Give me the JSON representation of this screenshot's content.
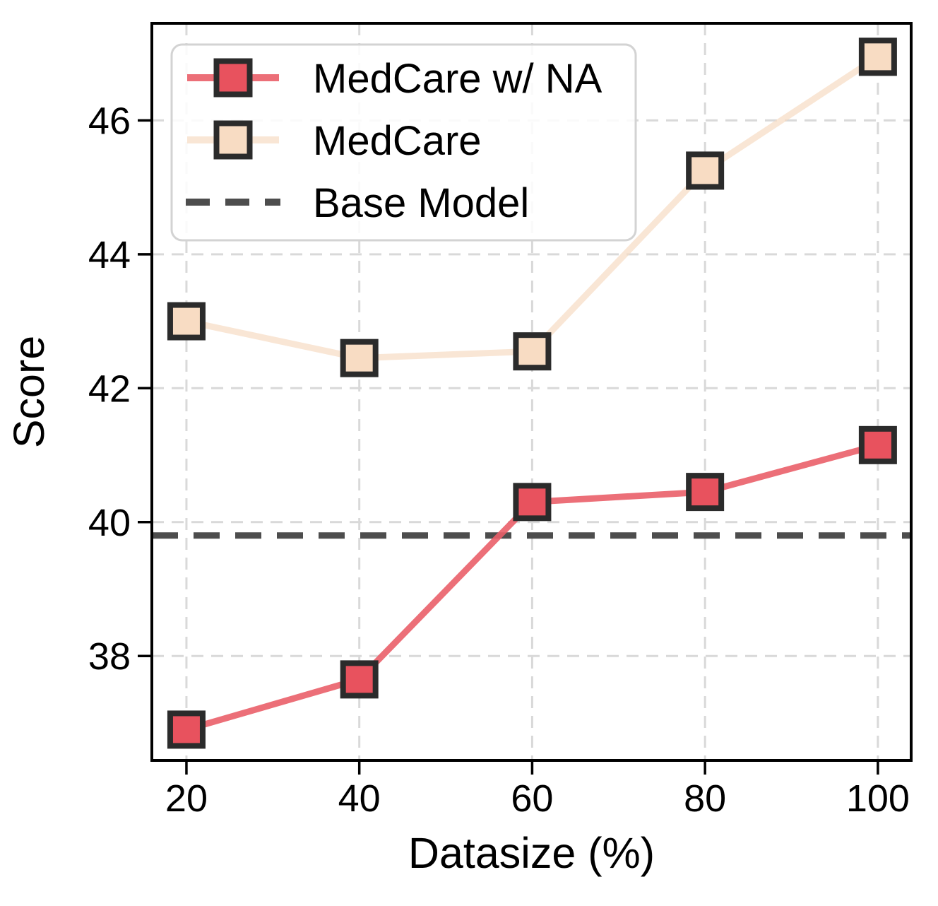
{
  "chart_data": {
    "type": "line",
    "title": "",
    "xlabel": "Datasize (%)",
    "ylabel": "Score",
    "x": [
      20,
      40,
      60,
      80,
      100
    ],
    "xticks": [
      "20",
      "40",
      "60",
      "80",
      "100"
    ],
    "xtick_values": [
      20,
      40,
      60,
      80,
      100
    ],
    "yticks": [
      "38",
      "40",
      "42",
      "44",
      "46"
    ],
    "ytick_values": [
      38,
      40,
      42,
      44,
      46
    ],
    "xlim": [
      16,
      103.85
    ],
    "ylim": [
      36.44,
      47.45
    ],
    "grid": true,
    "series": [
      {
        "name": "MedCare w/ NA",
        "values": [
          36.9,
          37.65,
          40.3,
          40.45,
          41.15
        ],
        "marker": "square",
        "color": "#e8525e",
        "line_color": "rgba(234,95,105,0.9)"
      },
      {
        "name": "MedCare",
        "values": [
          43.0,
          42.45,
          42.55,
          45.25,
          46.95
        ],
        "marker": "square",
        "color": "#f8dcc3",
        "line_color": "rgba(247,219,195,0.7)"
      }
    ],
    "reference_line": {
      "name": "Base Model",
      "value": 39.8,
      "style": "dashed",
      "color": "#4d4d4d"
    },
    "legend": {
      "position": "upper left",
      "entries": [
        "MedCare w/ NA",
        "MedCare",
        "Base Model"
      ]
    },
    "colors": {
      "marker_edge": "#2b2b2b",
      "grid": "#d9d9d9",
      "axes": "#000000",
      "legend_border": "#d3d3d3",
      "legend_fill": "rgba(255,255,255,0.85)"
    }
  }
}
